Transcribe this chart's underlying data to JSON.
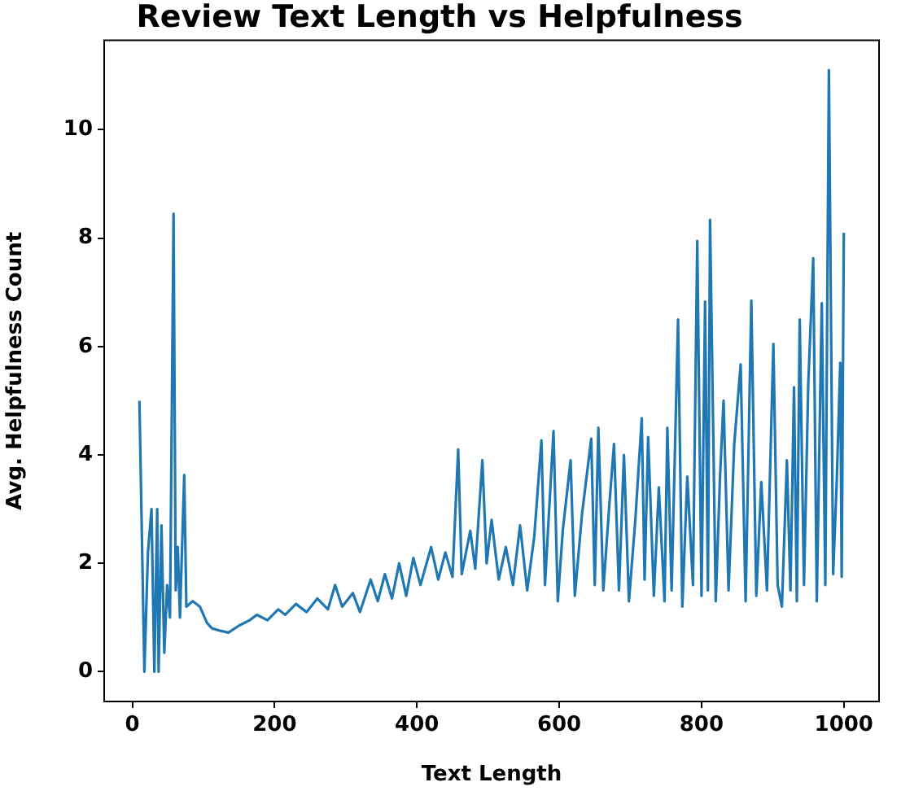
{
  "chart_data": {
    "type": "line",
    "title": "Review Text Length vs Helpfulness",
    "xlabel": "Text Length",
    "ylabel": "Avg. Helpfulness Count",
    "xlim": [
      -39.5,
      1049.5
    ],
    "ylim": [
      -0.55,
      11.65
    ],
    "xticks": [
      0,
      200,
      400,
      600,
      800,
      1000
    ],
    "yticks": [
      0,
      2,
      4,
      6,
      8,
      10
    ],
    "grid": false,
    "legend": false,
    "marker": "none",
    "line_style": "solid",
    "series": [
      {
        "color": "#1f77b4",
        "x": [
          10,
          17,
          22,
          27,
          31,
          35,
          37,
          41,
          45,
          49,
          53,
          58,
          61,
          64,
          67,
          73,
          76,
          85,
          95,
          105,
          112,
          125,
          135,
          150,
          165,
          175,
          190,
          205,
          215,
          230,
          245,
          260,
          275,
          285,
          295,
          310,
          320,
          335,
          345,
          355,
          365,
          375,
          385,
          395,
          405,
          420,
          430,
          440,
          450,
          458,
          463,
          475,
          482,
          492,
          498,
          505,
          515,
          525,
          535,
          545,
          555,
          565,
          575,
          580,
          592,
          598,
          605,
          616,
          622,
          632,
          645,
          650,
          655,
          662,
          670,
          677,
          684,
          691,
          698,
          707,
          716,
          720,
          725,
          733,
          740,
          748,
          752,
          758,
          767,
          773,
          780,
          788,
          794,
          800,
          805,
          809,
          812,
          820,
          826,
          831,
          838,
          846,
          855,
          862,
          870,
          877,
          884,
          892,
          901,
          907,
          913,
          920,
          925,
          930,
          934,
          938,
          944,
          950,
          957,
          962,
          969,
          974,
          979,
          985,
          990,
          995,
          997,
          1000
        ],
        "values": [
          5.0,
          0,
          2.2,
          3.0,
          0,
          3.0,
          0,
          2.7,
          0.35,
          1.6,
          1.0,
          8.45,
          1.5,
          2.3,
          1.0,
          3.63,
          1.2,
          1.3,
          1.2,
          0.9,
          0.8,
          0.75,
          0.72,
          0.85,
          0.95,
          1.05,
          0.95,
          1.15,
          1.05,
          1.25,
          1.1,
          1.35,
          1.15,
          1.6,
          1.2,
          1.45,
          1.1,
          1.7,
          1.3,
          1.8,
          1.35,
          2.0,
          1.4,
          2.1,
          1.6,
          2.3,
          1.7,
          2.2,
          1.75,
          4.1,
          1.8,
          2.6,
          1.9,
          3.9,
          2.0,
          2.8,
          1.7,
          2.3,
          1.6,
          2.7,
          1.5,
          2.5,
          4.27,
          1.6,
          4.44,
          1.3,
          2.6,
          3.9,
          1.4,
          2.9,
          4.3,
          1.6,
          4.5,
          1.5,
          3.0,
          4.2,
          1.5,
          4.0,
          1.3,
          2.8,
          4.68,
          1.7,
          4.33,
          1.4,
          3.4,
          1.3,
          4.5,
          1.5,
          6.5,
          1.2,
          3.6,
          1.6,
          7.95,
          1.4,
          6.83,
          1.5,
          8.34,
          1.3,
          3.6,
          5.0,
          1.5,
          4.2,
          5.67,
          1.3,
          6.85,
          1.4,
          3.5,
          1.5,
          6.05,
          1.6,
          1.2,
          3.9,
          1.5,
          5.25,
          1.3,
          6.5,
          1.6,
          5.3,
          7.63,
          1.3,
          6.8,
          1.6,
          11.1,
          1.8,
          3.5,
          5.7,
          1.75,
          8.1
        ]
      }
    ]
  }
}
